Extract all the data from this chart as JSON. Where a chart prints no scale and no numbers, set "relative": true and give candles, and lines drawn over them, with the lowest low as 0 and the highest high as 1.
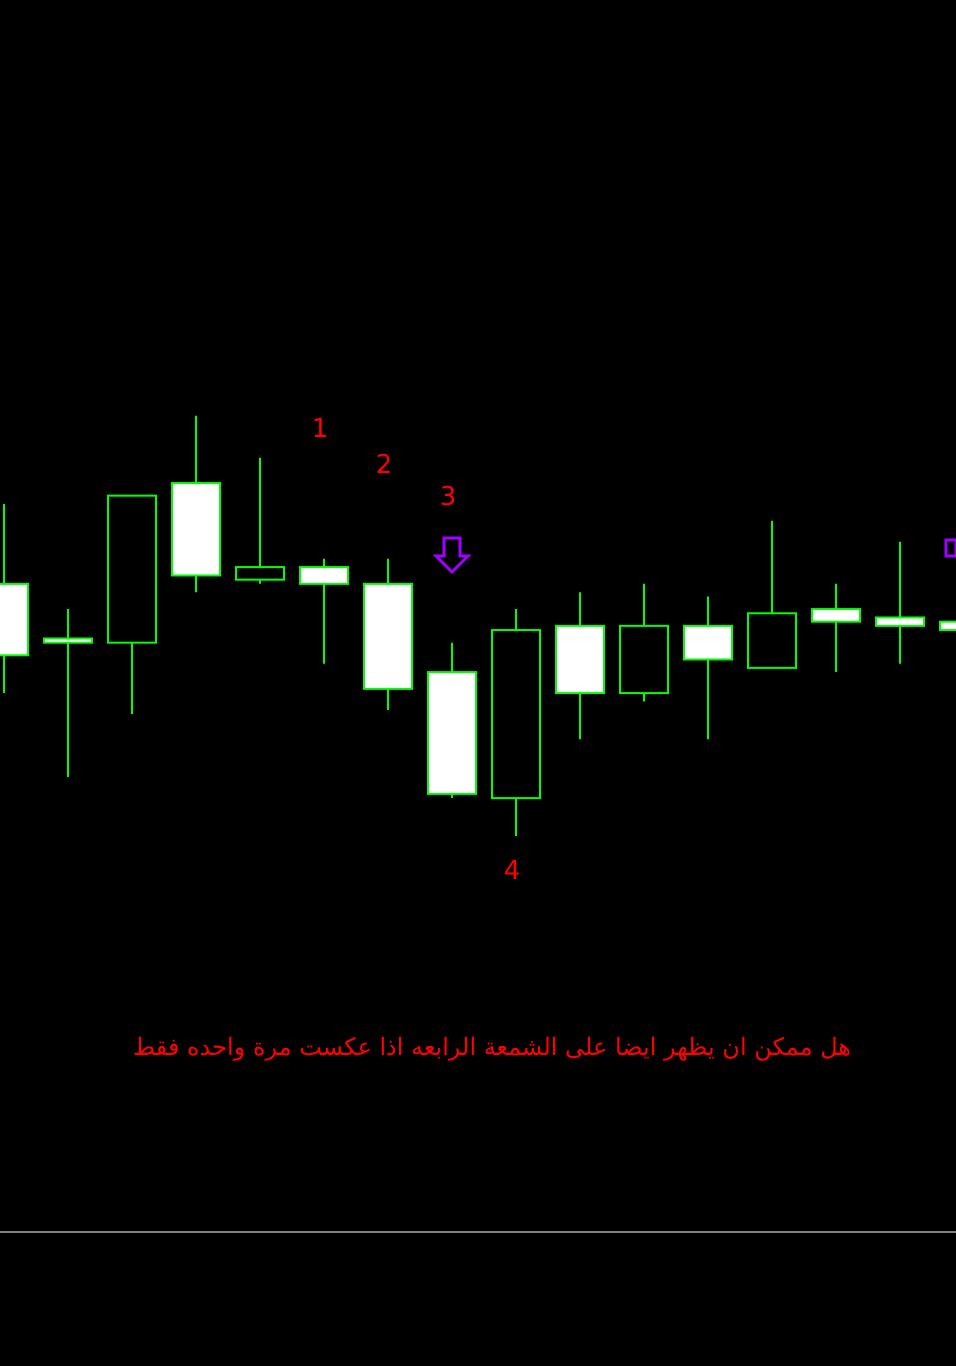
{
  "chart_data": {
    "type": "candlestick",
    "relative": true,
    "categories": [
      null,
      null,
      null,
      null,
      null,
      null,
      null,
      null,
      null,
      null,
      null,
      null,
      null,
      null,
      null,
      null
    ],
    "ohlc": [
      [
        0.6,
        0.79,
        0.34,
        0.43
      ],
      [
        0.47,
        0.54,
        0.14,
        0.46
      ],
      [
        0.46,
        0.81,
        0.29,
        0.81
      ],
      [
        0.84,
        1,
        0.58,
        0.62
      ],
      [
        0.61,
        0.9,
        0.6,
        0.64
      ],
      [
        0.64,
        0.66,
        0.41,
        0.6
      ],
      [
        0.6,
        0.66,
        0.3,
        0.35
      ],
      [
        0.39,
        0.46,
        0.09,
        0.1
      ],
      [
        0.09,
        0.54,
        0,
        0.49
      ],
      [
        0.5,
        0.58,
        0.23,
        0.34
      ],
      [
        0.34,
        0.6,
        0.32,
        0.5
      ],
      [
        0.5,
        0.57,
        0.23,
        0.42
      ],
      [
        0.4,
        0.75,
        0.4,
        0.53
      ],
      [
        0.54,
        0.6,
        0.39,
        0.51
      ],
      [
        0.52,
        0.7,
        0.41,
        0.5
      ],
      [
        0.51,
        0.51,
        0.49,
        0.49
      ]
    ],
    "annotations": [
      "1",
      "2",
      "3",
      "4",
      "هل ممكن ان يظهر ايضا على الشمعة الرابعه اذا عكست مرة واحده فقط"
    ]
  }
}
